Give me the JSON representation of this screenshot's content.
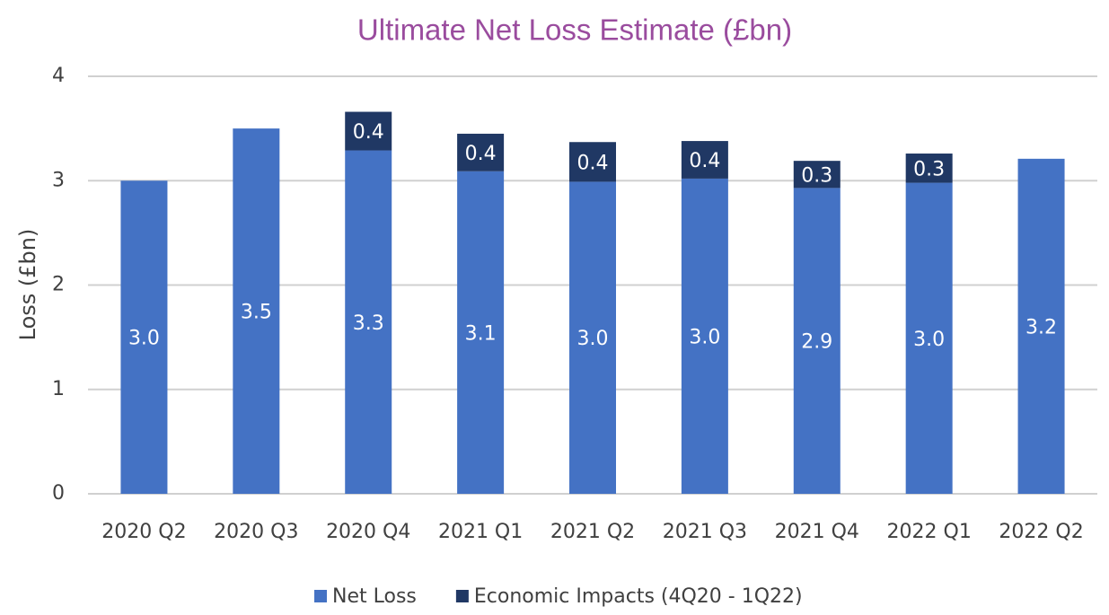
{
  "chart_data": {
    "type": "stacked_bar",
    "title": "Ultimate Net Loss Estimate (£bn)",
    "y_label": "Loss (£bn)",
    "categories": [
      "2020 Q2",
      "2020 Q3",
      "2020 Q4",
      "2021 Q1",
      "2021 Q2",
      "2021 Q3",
      "2021 Q4",
      "2022 Q1",
      "2022 Q2"
    ],
    "series": [
      {
        "name": "Net Loss",
        "color": "#4472c4",
        "values": [
          3.0,
          3.5,
          3.29,
          3.09,
          2.99,
          3.02,
          2.93,
          2.98,
          3.21
        ],
        "value_labels": [
          "3.0",
          "3.5",
          "3.3",
          "3.1",
          "3.0",
          "3.0",
          "2.9",
          "3.0",
          "3.2"
        ]
      },
      {
        "name": "Economic Impacts (4Q20 - 1Q22)",
        "color": "#203864",
        "values": [
          null,
          null,
          0.37,
          0.36,
          0.38,
          0.36,
          0.26,
          0.28,
          null
        ],
        "value_labels": [
          null,
          null,
          "0.4",
          "0.4",
          "0.4",
          "0.4",
          "0.3",
          "0.3",
          null
        ]
      }
    ],
    "ylim": [
      0,
      4
    ],
    "yticks": [
      0,
      1,
      2,
      3,
      4
    ],
    "grid": true,
    "legend": "bottom"
  }
}
